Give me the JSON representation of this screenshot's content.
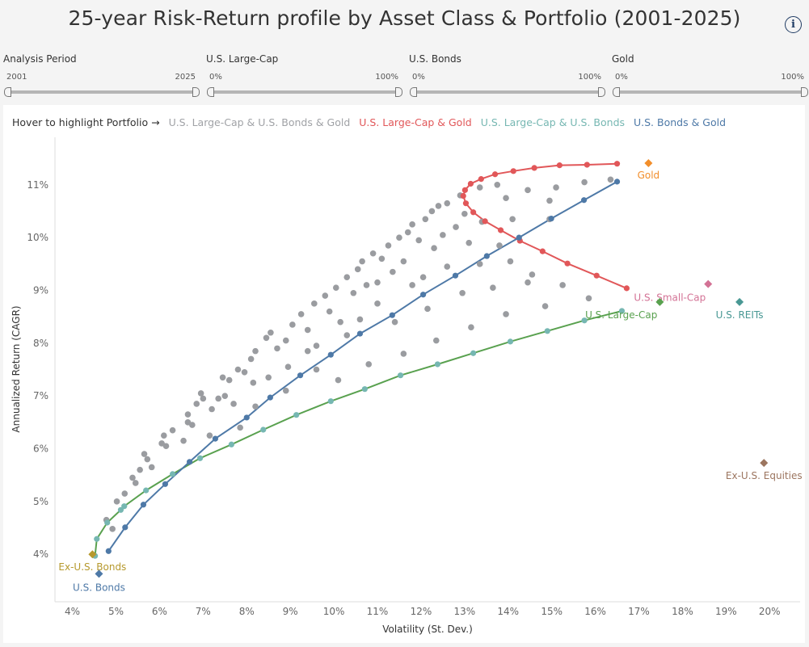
{
  "header": {
    "title": "25-year Risk-Return profile by Asset Class & Portfolio (2001-2025)",
    "info_icon": "info-icon"
  },
  "filters": [
    {
      "label": "Analysis Period",
      "min": "2001",
      "max": "2025"
    },
    {
      "label": "U.S. Large-Cap",
      "min": "0%",
      "max": "100%"
    },
    {
      "label": "U.S. Bonds",
      "min": "0%",
      "max": "100%"
    },
    {
      "label": "Gold",
      "min": "0%",
      "max": "100%"
    }
  ],
  "legend": {
    "hint": "Hover to highlight Portfolio →",
    "items": [
      {
        "label": "U.S. Large-Cap & U.S. Bonds & Gold",
        "color": "#a0a2a6"
      },
      {
        "label": "U.S. Large-Cap & Gold",
        "color": "#e15759"
      },
      {
        "label": "U.S. Large-Cap & U.S. Bonds",
        "color": "#76b7b2"
      },
      {
        "label": "U.S. Bonds & Gold",
        "color": "#4e79a7"
      }
    ]
  },
  "chart_data": {
    "type": "scatter",
    "xlabel": "Volatility (St. Dev.)",
    "ylabel": "Annualized Return (CAGR)",
    "xlim": [
      3.6,
      20.7
    ],
    "ylim": [
      3.1,
      11.9
    ],
    "xticks": [
      4,
      5,
      6,
      7,
      8,
      9,
      10,
      11,
      12,
      13,
      14,
      15,
      16,
      17,
      18,
      19,
      20
    ],
    "yticks": [
      4,
      5,
      6,
      7,
      8,
      9,
      10,
      11
    ],
    "tick_suffix": "%",
    "grid": false,
    "series": [
      {
        "name": "U.S. Large-Cap & U.S. Bonds & Gold",
        "color": "#9a9ca0",
        "line": false,
        "points": [
          [
            4.78,
            4.65
          ],
          [
            4.92,
            4.48
          ],
          [
            5.02,
            5.0
          ],
          [
            5.2,
            5.15
          ],
          [
            5.38,
            5.45
          ],
          [
            5.45,
            5.35
          ],
          [
            5.55,
            5.6
          ],
          [
            5.65,
            5.9
          ],
          [
            5.72,
            5.8
          ],
          [
            5.82,
            5.65
          ],
          [
            6.05,
            6.1
          ],
          [
            6.1,
            6.25
          ],
          [
            6.15,
            6.05
          ],
          [
            6.3,
            6.35
          ],
          [
            6.55,
            6.15
          ],
          [
            6.65,
            6.5
          ],
          [
            6.65,
            6.65
          ],
          [
            6.75,
            6.45
          ],
          [
            6.85,
            6.85
          ],
          [
            6.95,
            7.05
          ],
          [
            7.0,
            6.95
          ],
          [
            7.15,
            6.25
          ],
          [
            7.2,
            6.75
          ],
          [
            7.35,
            6.95
          ],
          [
            7.45,
            7.35
          ],
          [
            7.5,
            7.0
          ],
          [
            7.6,
            7.3
          ],
          [
            7.7,
            6.85
          ],
          [
            7.8,
            7.5
          ],
          [
            7.85,
            6.4
          ],
          [
            7.95,
            7.45
          ],
          [
            8.1,
            7.7
          ],
          [
            8.15,
            7.25
          ],
          [
            8.2,
            7.85
          ],
          [
            8.45,
            8.1
          ],
          [
            8.5,
            7.35
          ],
          [
            8.55,
            8.2
          ],
          [
            8.7,
            7.9
          ],
          [
            8.9,
            8.05
          ],
          [
            8.95,
            7.55
          ],
          [
            9.05,
            8.35
          ],
          [
            9.25,
            8.55
          ],
          [
            9.4,
            8.25
          ],
          [
            9.55,
            8.75
          ],
          [
            9.6,
            7.95
          ],
          [
            9.8,
            8.9
          ],
          [
            9.9,
            8.6
          ],
          [
            10.05,
            9.05
          ],
          [
            10.15,
            8.4
          ],
          [
            10.3,
            9.25
          ],
          [
            10.45,
            8.95
          ],
          [
            10.55,
            9.4
          ],
          [
            10.65,
            9.55
          ],
          [
            10.75,
            9.1
          ],
          [
            10.9,
            9.7
          ],
          [
            11.0,
            8.75
          ],
          [
            11.1,
            9.6
          ],
          [
            11.25,
            9.85
          ],
          [
            11.35,
            9.35
          ],
          [
            11.5,
            10.0
          ],
          [
            11.6,
            9.55
          ],
          [
            11.7,
            10.1
          ],
          [
            11.8,
            10.25
          ],
          [
            11.95,
            9.95
          ],
          [
            12.1,
            10.35
          ],
          [
            12.25,
            10.5
          ],
          [
            12.4,
            10.6
          ],
          [
            12.5,
            10.05
          ],
          [
            12.6,
            10.65
          ],
          [
            12.9,
            10.8
          ],
          [
            13.0,
            10.45
          ],
          [
            13.35,
            10.95
          ],
          [
            8.2,
            6.8
          ],
          [
            8.9,
            7.1
          ],
          [
            9.6,
            7.5
          ],
          [
            10.1,
            7.3
          ],
          [
            10.8,
            7.6
          ],
          [
            11.6,
            7.8
          ],
          [
            12.35,
            8.05
          ],
          [
            13.15,
            8.3
          ],
          [
            13.95,
            8.55
          ],
          [
            14.85,
            8.7
          ],
          [
            15.85,
            8.85
          ],
          [
            9.4,
            7.85
          ],
          [
            10.3,
            8.15
          ],
          [
            11.4,
            8.4
          ],
          [
            12.15,
            8.65
          ],
          [
            12.95,
            8.95
          ],
          [
            13.65,
            9.05
          ],
          [
            14.45,
            9.15
          ],
          [
            15.25,
            9.1
          ],
          [
            10.6,
            8.45
          ],
          [
            11.0,
            9.15
          ],
          [
            11.8,
            9.1
          ],
          [
            12.6,
            9.45
          ],
          [
            13.35,
            9.5
          ],
          [
            14.05,
            9.55
          ],
          [
            14.55,
            9.3
          ],
          [
            12.05,
            9.25
          ],
          [
            12.3,
            9.8
          ],
          [
            13.1,
            9.9
          ],
          [
            13.8,
            9.85
          ],
          [
            12.8,
            10.2
          ],
          [
            13.4,
            10.3
          ],
          [
            14.1,
            10.35
          ],
          [
            14.95,
            10.35
          ],
          [
            13.95,
            10.75
          ],
          [
            14.45,
            10.9
          ],
          [
            15.1,
            10.95
          ],
          [
            15.75,
            11.05
          ],
          [
            16.35,
            11.1
          ],
          [
            13.75,
            11.0
          ],
          [
            14.95,
            10.7
          ]
        ]
      },
      {
        "name": "U.S. Large-Cap & Gold",
        "color": "#e15759",
        "line": true,
        "points": [
          [
            16.72,
            9.04
          ],
          [
            16.03,
            9.28
          ],
          [
            15.36,
            9.51
          ],
          [
            14.79,
            9.74
          ],
          [
            14.27,
            9.94
          ],
          [
            13.83,
            10.14
          ],
          [
            13.47,
            10.31
          ],
          [
            13.2,
            10.48
          ],
          [
            13.03,
            10.65
          ],
          [
            12.97,
            10.79
          ],
          [
            13.01,
            10.9
          ],
          [
            13.14,
            11.02
          ],
          [
            13.38,
            11.11
          ],
          [
            13.7,
            11.2
          ],
          [
            14.12,
            11.26
          ],
          [
            14.6,
            11.32
          ],
          [
            15.18,
            11.37
          ],
          [
            15.81,
            11.38
          ],
          [
            16.5,
            11.4
          ]
        ]
      },
      {
        "name": "U.S. Large-Cap & U.S. Bonds",
        "color": "#76b7b2",
        "line_color": "#59a14f",
        "line": true,
        "points": [
          [
            4.52,
            3.97
          ],
          [
            4.56,
            4.29
          ],
          [
            4.8,
            4.6
          ],
          [
            5.11,
            4.84
          ],
          [
            5.19,
            4.91
          ],
          [
            5.69,
            5.21
          ],
          [
            6.3,
            5.52
          ],
          [
            6.93,
            5.82
          ],
          [
            7.65,
            6.08
          ],
          [
            8.38,
            6.36
          ],
          [
            9.14,
            6.64
          ],
          [
            9.93,
            6.9
          ],
          [
            10.71,
            7.13
          ],
          [
            11.53,
            7.39
          ],
          [
            12.38,
            7.6
          ],
          [
            13.2,
            7.81
          ],
          [
            14.05,
            8.03
          ],
          [
            14.9,
            8.23
          ],
          [
            15.75,
            8.43
          ],
          [
            16.61,
            8.61
          ]
        ]
      },
      {
        "name": "U.S. Bonds & Gold",
        "color": "#4e79a7",
        "line": true,
        "points": [
          [
            4.83,
            4.06
          ],
          [
            5.21,
            4.51
          ],
          [
            5.63,
            4.94
          ],
          [
            6.13,
            5.33
          ],
          [
            6.69,
            5.75
          ],
          [
            7.28,
            6.19
          ],
          [
            8.0,
            6.59
          ],
          [
            8.54,
            6.97
          ],
          [
            9.23,
            7.39
          ],
          [
            9.93,
            7.78
          ],
          [
            10.6,
            8.18
          ],
          [
            11.34,
            8.53
          ],
          [
            12.05,
            8.92
          ],
          [
            12.79,
            9.28
          ],
          [
            13.51,
            9.65
          ],
          [
            14.25,
            10.0
          ],
          [
            14.99,
            10.36
          ],
          [
            15.74,
            10.71
          ],
          [
            16.5,
            11.06
          ]
        ]
      }
    ],
    "assets": [
      {
        "label": "Gold",
        "x": 17.22,
        "y": 11.41,
        "color": "#f28e2b"
      },
      {
        "label": "U.S. Small-Cap",
        "x": 18.59,
        "y": 9.12,
        "color": "#d37295"
      },
      {
        "label": "U.S. REITs",
        "x": 19.31,
        "y": 8.78,
        "color": "#499894"
      },
      {
        "label": "U.S. Large-Cap",
        "x": 17.48,
        "y": 8.78,
        "color": "#59a14f"
      },
      {
        "label": "Ex-U.S. Equities",
        "x": 19.87,
        "y": 5.73,
        "color": "#9c755f"
      },
      {
        "label": "Ex-U.S. Bonds",
        "x": 4.46,
        "y": 4.0,
        "color": "#b6992d"
      },
      {
        "label": "U.S. Bonds",
        "x": 4.61,
        "y": 3.63,
        "color": "#4e79a7"
      }
    ]
  }
}
